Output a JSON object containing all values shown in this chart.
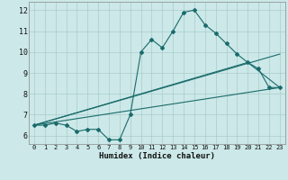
{
  "title": "",
  "xlabel": "Humidex (Indice chaleur)",
  "xlim": [
    -0.5,
    23.5
  ],
  "ylim": [
    5.6,
    12.4
  ],
  "xticks": [
    0,
    1,
    2,
    3,
    4,
    5,
    6,
    7,
    8,
    9,
    10,
    11,
    12,
    13,
    14,
    15,
    16,
    17,
    18,
    19,
    20,
    21,
    22,
    23
  ],
  "yticks": [
    6,
    7,
    8,
    9,
    10,
    11,
    12
  ],
  "bg_color": "#cce8e8",
  "grid_color": "#aacccc",
  "line_color": "#1a6b6b",
  "main_x": [
    0,
    1,
    2,
    3,
    4,
    5,
    6,
    7,
    8,
    9,
    10,
    11,
    12,
    13,
    14,
    15,
    16,
    17,
    18,
    19,
    20,
    21,
    22,
    23
  ],
  "main_y": [
    6.5,
    6.5,
    6.6,
    6.5,
    6.2,
    6.3,
    6.3,
    5.8,
    5.8,
    7.0,
    10.0,
    10.6,
    10.2,
    11.0,
    11.9,
    12.0,
    11.3,
    10.9,
    10.4,
    9.9,
    9.5,
    9.2,
    8.3,
    8.3
  ],
  "trend1_x": [
    0,
    23
  ],
  "trend1_y": [
    6.5,
    8.3
  ],
  "trend2_x": [
    0,
    20,
    23
  ],
  "trend2_y": [
    6.5,
    9.5,
    8.3
  ],
  "trend3_x": [
    0,
    23
  ],
  "trend3_y": [
    6.5,
    9.9
  ],
  "figsize": [
    3.2,
    2.0
  ],
  "dpi": 100
}
